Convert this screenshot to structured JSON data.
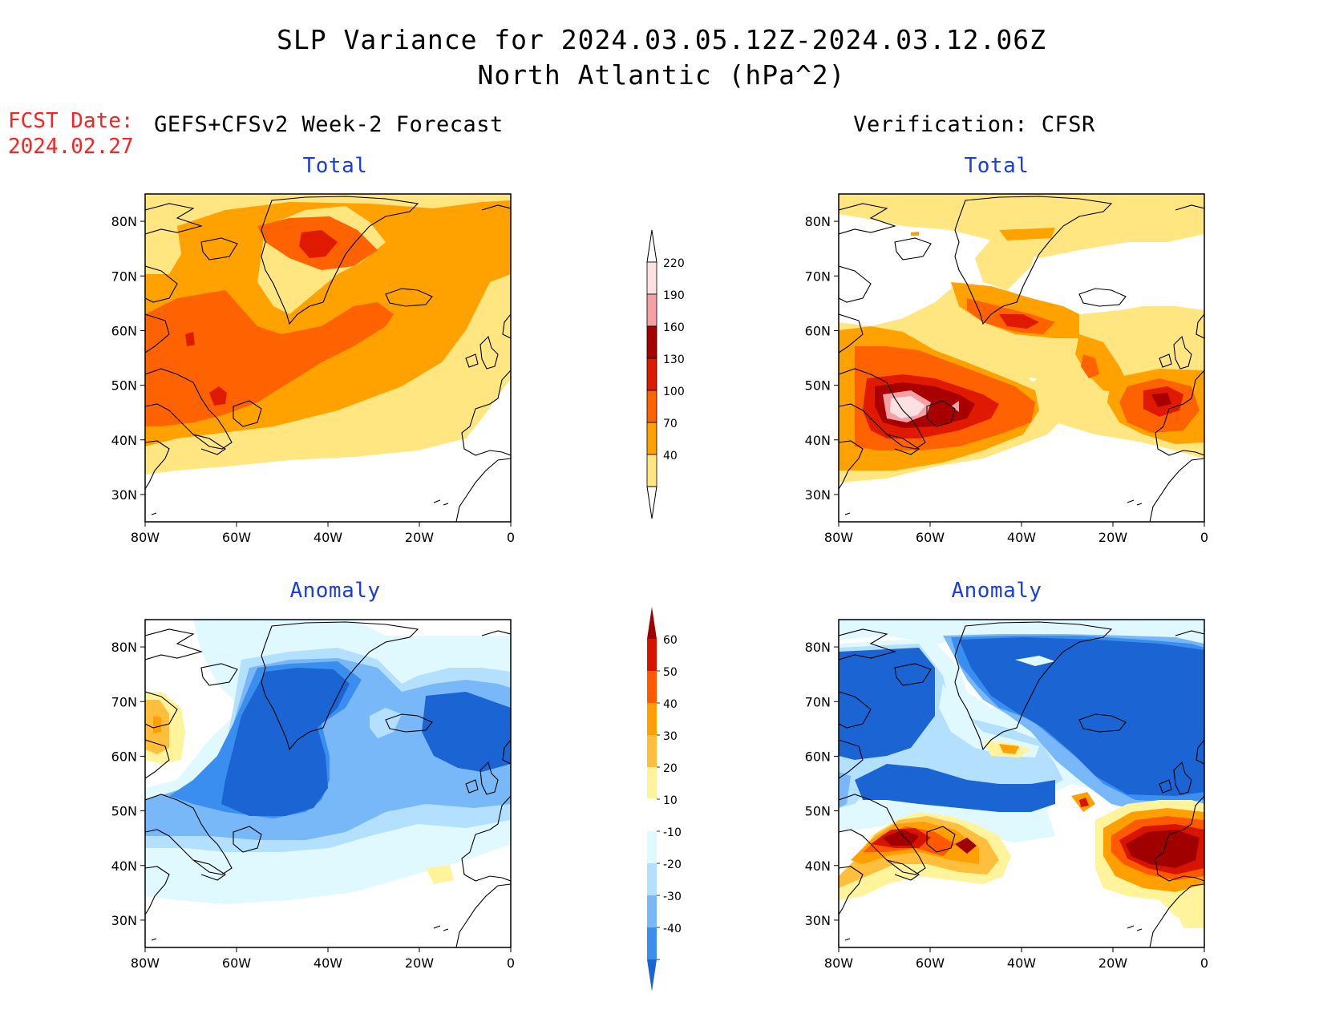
{
  "header": {
    "title_line1": "SLP Variance for 2024.03.05.12Z-2024.03.12.06Z",
    "title_line2": "North Atlantic (hPa^2)",
    "fcst_label": "FCST Date:",
    "fcst_date": "2024.02.27",
    "left_column": "GEFS+CFSv2 Week-2 Forecast",
    "right_column": "Verification: CFSR"
  },
  "panels": {
    "forecast_total": {
      "title": "Total"
    },
    "verification_total": {
      "title": "Total"
    },
    "forecast_anomaly": {
      "title": "Anomaly"
    },
    "verification_anomaly": {
      "title": "Anomaly"
    }
  },
  "axes": {
    "lon_labels": [
      "80W",
      "60W",
      "40W",
      "20W",
      "0"
    ],
    "lat_labels": [
      "80N",
      "70N",
      "60N",
      "50N",
      "40N",
      "30N"
    ],
    "lon_range": [
      -80,
      0
    ],
    "lat_range": [
      25,
      85
    ]
  },
  "legend_total": {
    "levels": [
      "220",
      "190",
      "160",
      "130",
      "100",
      "70",
      "40"
    ],
    "colors": [
      "#fde0e0",
      "#f4a0a4",
      "#a80000",
      "#e01a00",
      "#ff6200",
      "#ffa200",
      "#ffe680"
    ]
  },
  "legend_anomaly": {
    "levels": [
      "60",
      "50",
      "40",
      "30",
      "20",
      "10",
      "-10",
      "-20",
      "-30",
      "-40"
    ],
    "colors": [
      "#a00000",
      "#d81400",
      "#ff5a00",
      "#ffa000",
      "#ffbe3c",
      "#fff49c",
      "#ffffff",
      "#e0f8ff",
      "#b4e0ff",
      "#78b8f8",
      "#3a8ef0",
      "#1a64d4"
    ]
  },
  "colors": {
    "title_blue": "#1a3ce8",
    "fcst_red": "#ff2020"
  }
}
